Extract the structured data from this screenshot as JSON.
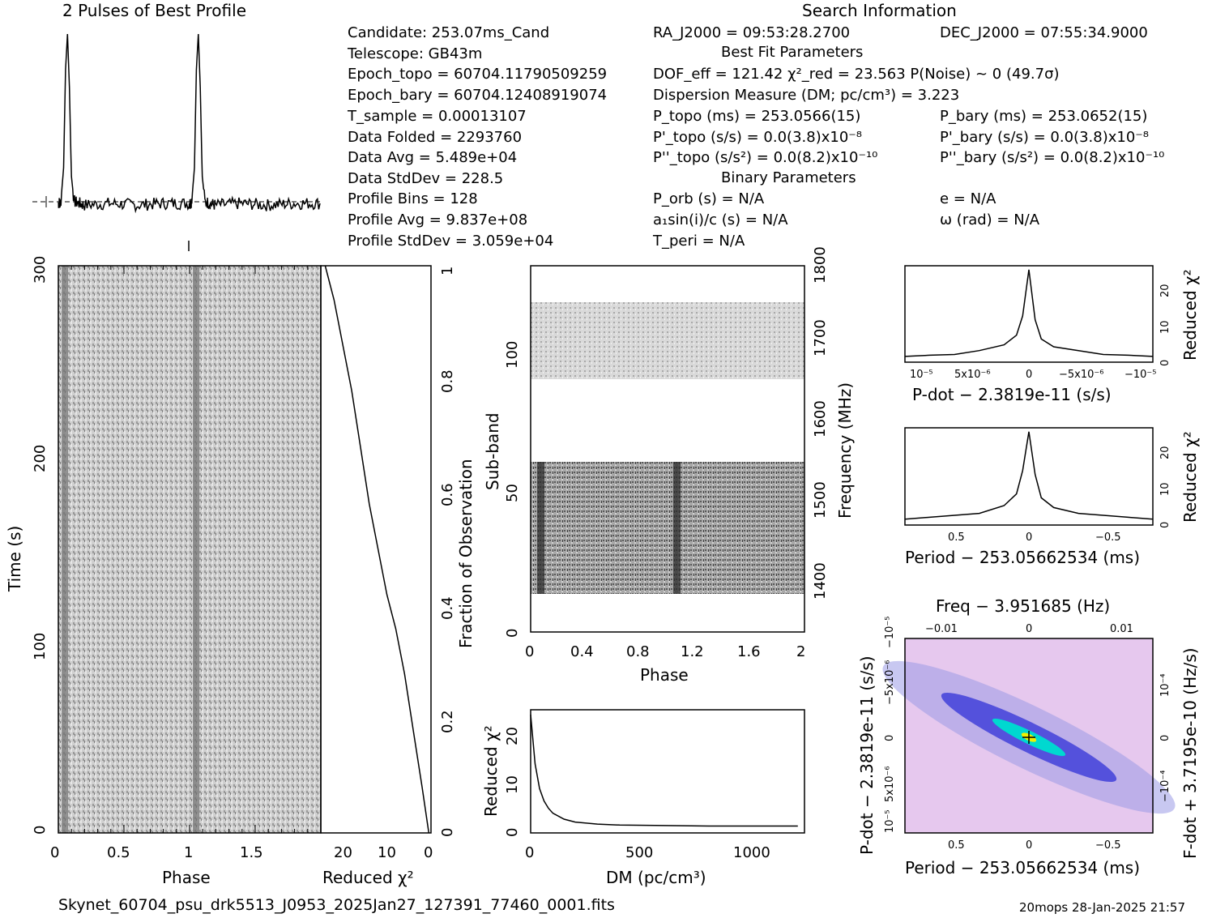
{
  "header": {
    "profile_title": "2 Pulses of Best Profile",
    "search_title": "Search Information"
  },
  "info": {
    "col1": [
      "Candidate:  253.07ms_Cand",
      "Telescope:  GB43m",
      "Epoch_topo = 60704.11790509259",
      "Epoch_bary = 60704.12408919074",
      "T_sample      =  0.00013107",
      "Data Folded    =  2293760",
      "Data Avg       =  5.489e+04",
      "Data StdDev    =  228.5",
      "Profile Bins   =  128",
      "Profile Avg    =  9.837e+08",
      "Profile StdDev =  3.059e+04"
    ],
    "col2": [
      "RA_J2000 = 09:53:28.2700",
      "DOF_eff = 121.42  χ²_red = 23.563  P(Noise) ~ 0   (49.7σ)",
      "Dispersion Measure (DM; pc/cm³) = 3.223",
      "P_topo (ms) =  253.0566(15)",
      "P'_topo (s/s) = 0.0(3.8)x10⁻⁸",
      "P''_topo (s/s²) = 0.0(8.2)x10⁻¹⁰",
      "P_orb (s) = N/A",
      "a₁sin(i)/c (s) = N/A",
      "T_peri = N/A"
    ],
    "col3": [
      "DEC_J2000 = 07:55:34.9000",
      "P_bary (ms) =  253.0652(15)",
      "P'_bary (s/s) = 0.0(3.8)x10⁻⁸",
      "P''_bary (s/s²) = 0.0(8.2)x10⁻¹⁰",
      "e = N/A",
      "ω (rad) = N/A"
    ],
    "best_fit_title": "Best Fit Parameters",
    "binary_title": "Binary Parameters"
  },
  "footer": {
    "filename": "Skynet_60704_psu_drk5513_J0953_2025Jan27_127391_77460_0001.fits",
    "stamp": "20mops 28-Jan-2025 21:57"
  },
  "colors": {
    "ink": "#000000",
    "pd_bg": "#e6c8ee",
    "pd_mid": "#6a6ae0",
    "pd_core": "#00e0d0",
    "pd_peak": "#f0f000"
  },
  "chart_data": [
    {
      "id": "profile",
      "type": "line",
      "x": [
        0,
        0.02,
        0.04,
        0.055,
        0.07,
        0.085,
        0.1,
        0.12,
        0.2,
        0.4,
        0.6,
        0.8,
        1.0,
        1.02,
        1.04,
        1.055,
        1.07,
        1.085,
        1.1,
        1.12,
        1.2,
        1.4,
        1.6,
        1.8,
        2.0
      ],
      "values": [
        0.05,
        0.06,
        0.25,
        0.8,
        1.0,
        0.7,
        0.2,
        0.06,
        0.04,
        0.05,
        0.04,
        0.05,
        0.05,
        0.06,
        0.25,
        0.8,
        1.0,
        0.7,
        0.2,
        0.06,
        0.04,
        0.05,
        0.04,
        0.05,
        0.05
      ]
    },
    {
      "id": "time_phase",
      "type": "heatmap",
      "xlabel": "Phase",
      "ylabel": "Time (s)",
      "xlim": [
        0,
        2
      ],
      "ylim": [
        0,
        300
      ],
      "xticks": [
        "0",
        "0.5",
        "1",
        "1.5"
      ],
      "yticks": [
        "0",
        "100",
        "200",
        "300"
      ]
    },
    {
      "id": "chi_time",
      "type": "line",
      "xlabel": "Reduced χ²",
      "ylabel": "Fraction of Observation",
      "xticks": [
        "20",
        "10",
        "0"
      ],
      "yticks": [
        "0",
        "0.2",
        "0.4",
        "0.6",
        "0.8",
        "1"
      ],
      "x": [
        0.5,
        2,
        4,
        6,
        8,
        10,
        12,
        14,
        16,
        18,
        20,
        22,
        24
      ],
      "values": [
        0.0,
        0.08,
        0.18,
        0.28,
        0.36,
        0.42,
        0.5,
        0.58,
        0.68,
        0.78,
        0.86,
        0.94,
        1.0
      ]
    },
    {
      "id": "subband",
      "type": "heatmap",
      "xlabel": "Phase",
      "ylabel": "Sub-band",
      "y2label": "Frequency (MHz)",
      "xticks": [
        "0",
        "0.4",
        "0.8",
        "1.2",
        "1.6",
        "2"
      ],
      "yticks": [
        "0",
        "50",
        "100"
      ],
      "y2ticks": [
        "1400",
        "1500",
        "1600",
        "1700",
        "1800"
      ]
    },
    {
      "id": "dm_curve",
      "type": "line",
      "xlabel": "DM (pc/cm³)",
      "ylabel": "Reduced χ²",
      "xticks": [
        "0",
        "500",
        "1000"
      ],
      "yticks": [
        "0",
        "10",
        "20"
      ],
      "x": [
        0,
        20,
        40,
        60,
        80,
        100,
        150,
        200,
        300,
        400,
        600,
        800,
        1000,
        1200
      ],
      "values": [
        24,
        14,
        9,
        6.5,
        5,
        4,
        2.8,
        2.2,
        1.8,
        1.6,
        1.5,
        1.4,
        1.4,
        1.4
      ]
    },
    {
      "id": "pdot_curve",
      "type": "line",
      "xlabel": "P-dot − 2.3819e-11 (s/s)",
      "ylabel": "Reduced χ²",
      "xticks": [
        "10⁻⁵",
        "5x10⁻⁶",
        "0",
        "−5x10⁻⁶",
        "−10⁻⁵"
      ],
      "yticks": [
        "0",
        "10",
        "20"
      ],
      "x": [
        -1,
        -0.8,
        -0.6,
        -0.4,
        -0.2,
        -0.1,
        -0.05,
        0,
        0.05,
        0.1,
        0.2,
        0.4,
        0.6,
        0.8,
        1
      ],
      "values": [
        1.5,
        1.8,
        2,
        3,
        4.5,
        7,
        12,
        24,
        11,
        6,
        4,
        3,
        2,
        1.8,
        1.5
      ]
    },
    {
      "id": "period_curve",
      "type": "line",
      "xlabel": "Period − 253.05662534 (ms)",
      "ylabel": "Reduced χ²",
      "xticks": [
        "0.5",
        "0",
        "−0.5"
      ],
      "yticks": [
        "0",
        "10",
        "20"
      ],
      "x": [
        -1,
        -0.8,
        -0.6,
        -0.4,
        -0.2,
        -0.1,
        -0.05,
        0,
        0.05,
        0.1,
        0.2,
        0.4,
        0.6,
        0.8,
        1
      ],
      "values": [
        1.5,
        2,
        2.5,
        3,
        5,
        8,
        14,
        24,
        13,
        7,
        4.5,
        3,
        2.5,
        2,
        1.5
      ]
    },
    {
      "id": "pdot_period",
      "type": "heatmap",
      "title": "Freq − 3.951685 (Hz)",
      "xlabel": "Period − 253.05662534 (ms)",
      "ylabel": "P-dot − 2.3819e-11 (s/s)",
      "y2label": "F-dot + 3.7195e-10 (Hz/s)",
      "xticks": [
        "0.5",
        "0",
        "−0.5"
      ],
      "x2ticks": [
        "−0.01",
        "0",
        "0.01"
      ],
      "yticks": [
        "10⁻⁵",
        "5x10⁻⁶",
        "0",
        "−5x10⁻⁶",
        "−10⁻⁵"
      ],
      "y2ticks": [
        "−10⁻⁴",
        "0",
        "10⁻⁴"
      ]
    }
  ]
}
